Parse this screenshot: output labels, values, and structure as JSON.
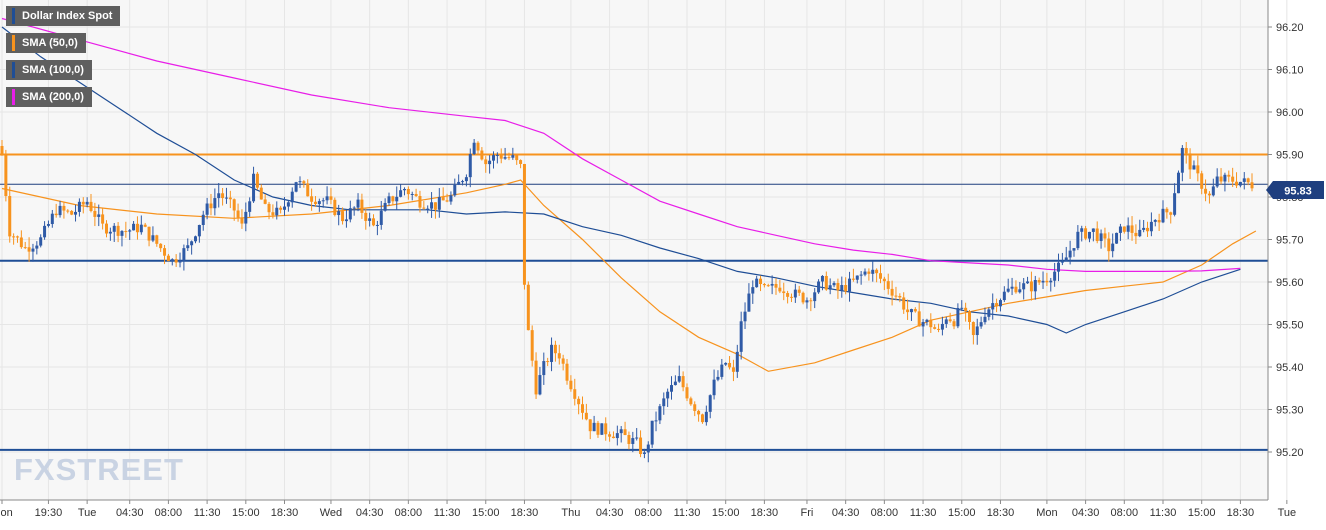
{
  "colors": {
    "background": "#f7f7f7",
    "grid": "#e6e6e6",
    "up_candle": "#2f5aa6",
    "down_candle": "#f7931e",
    "sma50": "#f7931e",
    "sma100": "#1f4e96",
    "sma200": "#e81ee8",
    "resistance_line": "#f7931e",
    "support_line": "#1f4e96",
    "current_price_line": "#1f3f7f",
    "price_tag_bg": "#1f3f7f",
    "legend_bg": "#5f5f5f",
    "watermark": "#c9d3e3"
  },
  "legend": [
    {
      "label": "Dollar Index Spot",
      "swatch": "#1f4e96"
    },
    {
      "label": "SMA (50,0)",
      "swatch": "#f7931e"
    },
    {
      "label": "SMA (100,0)",
      "swatch": "#1f4e96"
    },
    {
      "label": "SMA (200,0)",
      "swatch": "#e81ee8"
    }
  ],
  "watermark": "FXSTREET",
  "current_price_label": "95.83",
  "chart_data": {
    "type": "candlestick",
    "title": "Dollar Index Spot",
    "ylim": [
      95.1,
      96.3
    ],
    "y_ticks": [
      "96.20",
      "96.10",
      "96.00",
      "95.90",
      "95.80",
      "95.70",
      "95.60",
      "95.50",
      "95.40",
      "95.30",
      "95.20"
    ],
    "x_tick_labels": [
      "Mon",
      "19:30",
      "Tue",
      "04:30",
      "08:00",
      "11:30",
      "15:00",
      "18:30",
      "Wed",
      "04:30",
      "08:00",
      "11:30",
      "15:00",
      "18:30",
      "Thu",
      "04:30",
      "08:00",
      "11:30",
      "15:00",
      "18:30",
      "Fri",
      "04:30",
      "08:00",
      "11:30",
      "15:00",
      "18:30",
      "Mon",
      "04:30",
      "08:00",
      "11:30",
      "15:00",
      "18:30",
      "Tue"
    ],
    "x_tick_index": [
      0,
      12,
      22,
      33,
      43,
      53,
      63,
      73,
      85,
      95,
      105,
      115,
      125,
      135,
      147,
      157,
      167,
      177,
      187,
      197,
      208,
      218,
      228,
      238,
      248,
      258,
      270,
      280,
      290,
      300,
      310,
      320,
      332
    ],
    "horizontal_levels": [
      {
        "value": 95.9,
        "color": "#f7931e"
      },
      {
        "value": 95.65,
        "color": "#1f4e96"
      },
      {
        "value": 95.205,
        "color": "#1f4e96"
      }
    ],
    "current_price": 95.83,
    "anchors": [
      [
        0,
        95.9
      ],
      [
        2,
        95.72
      ],
      [
        6,
        95.68
      ],
      [
        10,
        95.7
      ],
      [
        14,
        95.77
      ],
      [
        18,
        95.76
      ],
      [
        22,
        95.79
      ],
      [
        26,
        95.73
      ],
      [
        32,
        95.72
      ],
      [
        36,
        95.73
      ],
      [
        40,
        95.69
      ],
      [
        44,
        95.65
      ],
      [
        48,
        95.68
      ],
      [
        52,
        95.76
      ],
      [
        56,
        95.81
      ],
      [
        60,
        95.77
      ],
      [
        62,
        95.73
      ],
      [
        65,
        95.84
      ],
      [
        68,
        95.77
      ],
      [
        72,
        95.76
      ],
      [
        76,
        95.84
      ],
      [
        80,
        95.8
      ],
      [
        84,
        95.79
      ],
      [
        88,
        95.75
      ],
      [
        92,
        95.78
      ],
      [
        96,
        95.73
      ],
      [
        100,
        95.79
      ],
      [
        104,
        95.82
      ],
      [
        108,
        95.79
      ],
      [
        112,
        95.78
      ],
      [
        116,
        95.8
      ],
      [
        120,
        95.86
      ],
      [
        122,
        95.94
      ],
      [
        125,
        95.88
      ],
      [
        128,
        95.9
      ],
      [
        132,
        95.89
      ],
      [
        134,
        95.87
      ],
      [
        135,
        95.6
      ],
      [
        136,
        95.48
      ],
      [
        138,
        95.35
      ],
      [
        140,
        95.4
      ],
      [
        142,
        95.44
      ],
      [
        144,
        95.43
      ],
      [
        146,
        95.38
      ],
      [
        148,
        95.34
      ],
      [
        152,
        95.26
      ],
      [
        156,
        95.25
      ],
      [
        160,
        95.24
      ],
      [
        164,
        95.22
      ],
      [
        166,
        95.19
      ],
      [
        168,
        95.26
      ],
      [
        172,
        95.34
      ],
      [
        175,
        95.37
      ],
      [
        178,
        95.32
      ],
      [
        181,
        95.28
      ],
      [
        184,
        95.36
      ],
      [
        187,
        95.41
      ],
      [
        189,
        95.38
      ],
      [
        191,
        95.5
      ],
      [
        194,
        95.6
      ],
      [
        197,
        95.58
      ],
      [
        201,
        95.59
      ],
      [
        205,
        95.57
      ],
      [
        208,
        95.56
      ],
      [
        212,
        95.6
      ],
      [
        216,
        95.58
      ],
      [
        220,
        95.6
      ],
      [
        224,
        95.63
      ],
      [
        228,
        95.6
      ],
      [
        232,
        95.56
      ],
      [
        234,
        95.53
      ],
      [
        237,
        95.51
      ],
      [
        240,
        95.5
      ],
      [
        242,
        95.48
      ],
      [
        244,
        95.52
      ],
      [
        246,
        95.51
      ],
      [
        248,
        95.54
      ],
      [
        251,
        95.47
      ],
      [
        254,
        95.53
      ],
      [
        256,
        95.55
      ],
      [
        260,
        95.58
      ],
      [
        262,
        95.59
      ],
      [
        266,
        95.59
      ],
      [
        270,
        95.61
      ],
      [
        274,
        95.64
      ],
      [
        278,
        95.71
      ],
      [
        282,
        95.72
      ],
      [
        286,
        95.68
      ],
      [
        290,
        95.73
      ],
      [
        294,
        95.71
      ],
      [
        298,
        95.75
      ],
      [
        302,
        95.77
      ],
      [
        305,
        95.91
      ],
      [
        308,
        95.86
      ],
      [
        310,
        95.83
      ],
      [
        312,
        95.8
      ],
      [
        314,
        95.84
      ],
      [
        318,
        95.84
      ],
      [
        323,
        95.83
      ]
    ],
    "sma50": [
      [
        0,
        95.82
      ],
      [
        20,
        95.78
      ],
      [
        40,
        95.76
      ],
      [
        60,
        95.75
      ],
      [
        80,
        95.76
      ],
      [
        100,
        95.78
      ],
      [
        120,
        95.81
      ],
      [
        130,
        95.83
      ],
      [
        134,
        95.84
      ],
      [
        140,
        95.78
      ],
      [
        150,
        95.7
      ],
      [
        160,
        95.61
      ],
      [
        170,
        95.53
      ],
      [
        180,
        95.47
      ],
      [
        190,
        95.43
      ],
      [
        198,
        95.39
      ],
      [
        210,
        95.41
      ],
      [
        220,
        95.44
      ],
      [
        230,
        95.47
      ],
      [
        240,
        95.51
      ],
      [
        250,
        95.53
      ],
      [
        260,
        95.55
      ],
      [
        270,
        95.565
      ],
      [
        280,
        95.58
      ],
      [
        290,
        95.59
      ],
      [
        300,
        95.6
      ],
      [
        310,
        95.64
      ],
      [
        318,
        95.69
      ],
      [
        324,
        95.72
      ]
    ],
    "sma100": [
      [
        0,
        96.2
      ],
      [
        10,
        96.13
      ],
      [
        20,
        96.07
      ],
      [
        30,
        96.01
      ],
      [
        40,
        95.95
      ],
      [
        50,
        95.9
      ],
      [
        60,
        95.84
      ],
      [
        70,
        95.8
      ],
      [
        80,
        95.78
      ],
      [
        90,
        95.77
      ],
      [
        100,
        95.77
      ],
      [
        110,
        95.77
      ],
      [
        120,
        95.76
      ],
      [
        130,
        95.765
      ],
      [
        140,
        95.76
      ],
      [
        150,
        95.73
      ],
      [
        160,
        95.71
      ],
      [
        170,
        95.68
      ],
      [
        180,
        95.655
      ],
      [
        190,
        95.625
      ],
      [
        200,
        95.61
      ],
      [
        210,
        95.59
      ],
      [
        220,
        95.575
      ],
      [
        230,
        95.56
      ],
      [
        240,
        95.55
      ],
      [
        250,
        95.53
      ],
      [
        260,
        95.52
      ],
      [
        270,
        95.5
      ],
      [
        275,
        95.48
      ],
      [
        280,
        95.5
      ],
      [
        290,
        95.53
      ],
      [
        300,
        95.56
      ],
      [
        310,
        95.6
      ],
      [
        320,
        95.63
      ]
    ],
    "sma200": [
      [
        0,
        96.22
      ],
      [
        20,
        96.17
      ],
      [
        40,
        96.12
      ],
      [
        60,
        96.08
      ],
      [
        80,
        96.04
      ],
      [
        100,
        96.01
      ],
      [
        120,
        95.99
      ],
      [
        130,
        95.98
      ],
      [
        140,
        95.95
      ],
      [
        150,
        95.89
      ],
      [
        160,
        95.84
      ],
      [
        170,
        95.79
      ],
      [
        180,
        95.76
      ],
      [
        190,
        95.73
      ],
      [
        200,
        95.71
      ],
      [
        210,
        95.69
      ],
      [
        220,
        95.675
      ],
      [
        230,
        95.665
      ],
      [
        240,
        95.65
      ],
      [
        250,
        95.645
      ],
      [
        260,
        95.64
      ],
      [
        270,
        95.63
      ],
      [
        280,
        95.625
      ],
      [
        290,
        95.625
      ],
      [
        300,
        95.625
      ],
      [
        310,
        95.626
      ],
      [
        320,
        95.632
      ]
    ]
  }
}
